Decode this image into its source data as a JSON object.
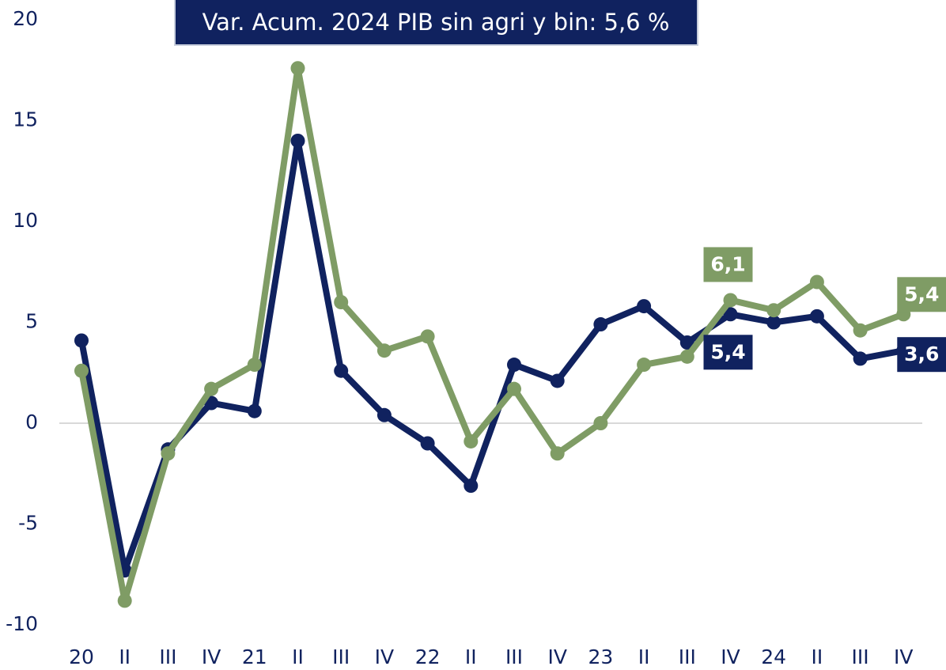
{
  "chart_data": {
    "type": "line",
    "title": "Var. Acum. 2024 PIB sin agri y bin: 5,6 %",
    "categories": [
      "20",
      "II",
      "III",
      "IV",
      "21",
      "II",
      "III",
      "IV",
      "22",
      "II",
      "III",
      "IV",
      "23",
      "II",
      "III",
      "IV",
      "24",
      "II",
      "III",
      "IV"
    ],
    "series": [
      {
        "color": "#10225f",
        "values": [
          4.1,
          -7.3,
          -1.3,
          1.0,
          0.6,
          14.0,
          2.6,
          0.4,
          -1.0,
          -3.1,
          2.9,
          2.1,
          4.9,
          5.8,
          4.0,
          5.4,
          5.0,
          5.3,
          3.2,
          3.6
        ],
        "value_labels": [
          null,
          null,
          null,
          null,
          null,
          null,
          null,
          null,
          null,
          null,
          null,
          null,
          null,
          null,
          null,
          "5,4",
          null,
          null,
          null,
          "3,6"
        ]
      },
      {
        "color": "#7f9c65",
        "values": [
          2.6,
          -8.8,
          -1.5,
          1.7,
          2.9,
          17.6,
          6.0,
          3.6,
          4.3,
          -0.9,
          1.7,
          -1.5,
          0.0,
          2.9,
          3.3,
          6.1,
          5.6,
          7.0,
          4.6,
          5.4
        ],
        "value_labels": [
          null,
          null,
          null,
          null,
          null,
          null,
          null,
          null,
          null,
          null,
          null,
          null,
          null,
          null,
          null,
          "6,1",
          null,
          null,
          null,
          "5,4"
        ]
      }
    ],
    "ylim": [
      -10,
      20
    ],
    "yticks": [
      -10,
      -5,
      0,
      5,
      10,
      15,
      20
    ]
  }
}
